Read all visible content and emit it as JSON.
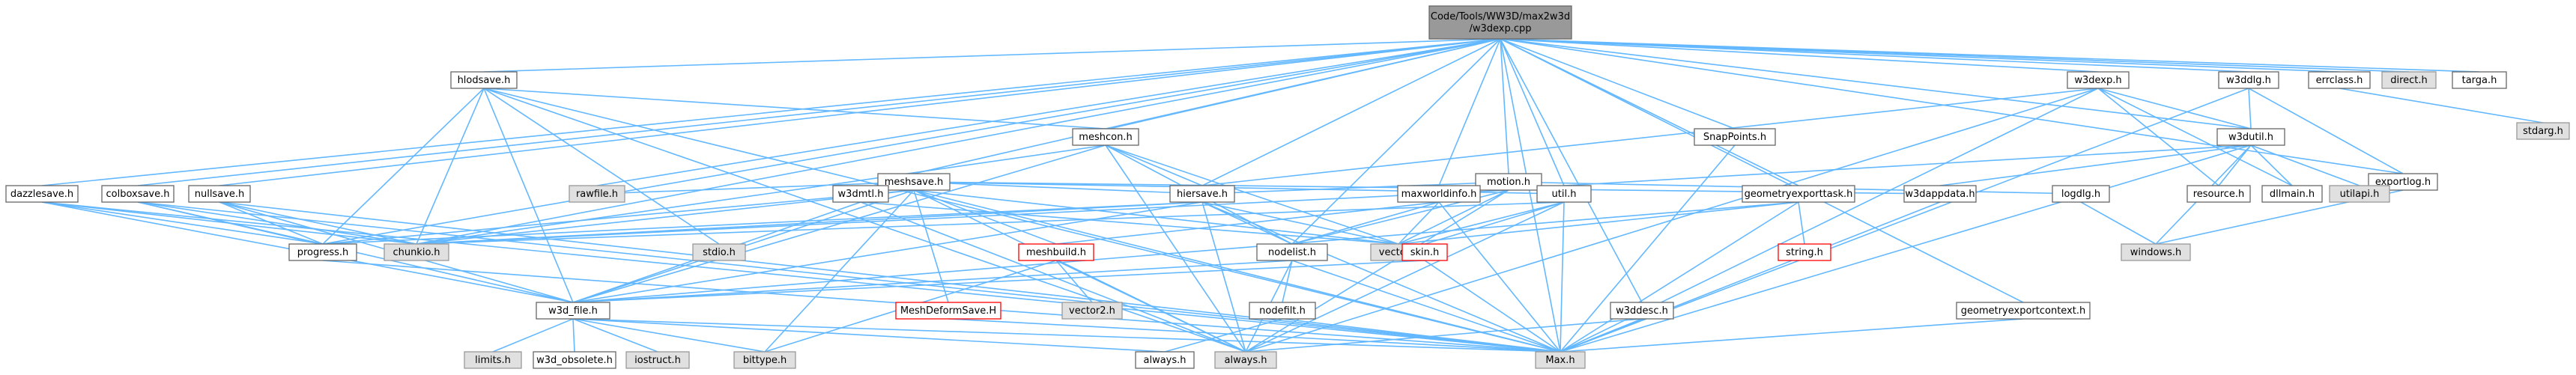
{
  "colors": {
    "edge": "#63b8ff",
    "node_fill": "#ffffff",
    "node_stroke": "#666666",
    "root_fill": "#999999",
    "external_fill": "#e0e0e0",
    "external_stroke": "#999999",
    "highlight_stroke": "#ff0000"
  },
  "nodes": [
    {
      "id": "root",
      "lines": [
        "Code/Tools/WW3D/max2w3d",
        "/w3dexp.cpp"
      ],
      "kind": "root"
    },
    {
      "id": "hlodsave",
      "lines": [
        "hlodsave.h"
      ],
      "kind": "normal"
    },
    {
      "id": "meshcon",
      "lines": [
        "meshcon.h"
      ],
      "kind": "normal"
    },
    {
      "id": "meshsave",
      "lines": [
        "meshsave.h"
      ],
      "kind": "normal"
    },
    {
      "id": "motion",
      "lines": [
        "motion.h"
      ],
      "kind": "normal"
    },
    {
      "id": "snappoints",
      "lines": [
        "SnapPoints.h"
      ],
      "kind": "normal"
    },
    {
      "id": "w3dexp_h",
      "lines": [
        "w3dexp.h"
      ],
      "kind": "normal"
    },
    {
      "id": "w3ddlg",
      "lines": [
        "w3ddlg.h"
      ],
      "kind": "normal"
    },
    {
      "id": "errclass",
      "lines": [
        "errclass.h"
      ],
      "kind": "normal"
    },
    {
      "id": "direct",
      "lines": [
        "direct.h"
      ],
      "kind": "external"
    },
    {
      "id": "targa",
      "lines": [
        "targa.h"
      ],
      "kind": "normal"
    },
    {
      "id": "stdarg",
      "lines": [
        "stdarg.h"
      ],
      "kind": "external"
    },
    {
      "id": "w3dutil",
      "lines": [
        "w3dutil.h"
      ],
      "kind": "normal"
    },
    {
      "id": "exportlog",
      "lines": [
        "exportlog.h"
      ],
      "kind": "normal"
    },
    {
      "id": "dazzlesave",
      "lines": [
        "dazzlesave.h"
      ],
      "kind": "normal"
    },
    {
      "id": "colboxsave",
      "lines": [
        "colboxsave.h"
      ],
      "kind": "normal"
    },
    {
      "id": "nullsave",
      "lines": [
        "nullsave.h"
      ],
      "kind": "normal"
    },
    {
      "id": "rawfile",
      "lines": [
        "rawfile.h"
      ],
      "kind": "external"
    },
    {
      "id": "w3dmtl",
      "lines": [
        "w3dmtl.h"
      ],
      "kind": "normal"
    },
    {
      "id": "hiersave",
      "lines": [
        "hiersave.h"
      ],
      "kind": "normal"
    },
    {
      "id": "maxworldinfo",
      "lines": [
        "maxworldinfo.h"
      ],
      "kind": "normal"
    },
    {
      "id": "util",
      "lines": [
        "util.h"
      ],
      "kind": "normal"
    },
    {
      "id": "geomexporttask",
      "lines": [
        "geometryexporttask.h"
      ],
      "kind": "normal"
    },
    {
      "id": "w3dappdata",
      "lines": [
        "w3dappdata.h"
      ],
      "kind": "normal"
    },
    {
      "id": "logdlg",
      "lines": [
        "logdlg.h"
      ],
      "kind": "normal"
    },
    {
      "id": "resource",
      "lines": [
        "resource.h"
      ],
      "kind": "normal"
    },
    {
      "id": "dllmain",
      "lines": [
        "dllmain.h"
      ],
      "kind": "normal"
    },
    {
      "id": "utilapi",
      "lines": [
        "utilapi.h"
      ],
      "kind": "external"
    },
    {
      "id": "windows",
      "lines": [
        "windows.h"
      ],
      "kind": "external"
    },
    {
      "id": "progress",
      "lines": [
        "progress.h"
      ],
      "kind": "normal"
    },
    {
      "id": "chunkio",
      "lines": [
        "chunkio.h"
      ],
      "kind": "external"
    },
    {
      "id": "stdio",
      "lines": [
        "stdio.h"
      ],
      "kind": "external"
    },
    {
      "id": "meshbuild",
      "lines": [
        "meshbuild.h"
      ],
      "kind": "highlight"
    },
    {
      "id": "nodelist",
      "lines": [
        "nodelist.h"
      ],
      "kind": "normal"
    },
    {
      "id": "vector",
      "lines": [
        "vector.h"
      ],
      "kind": "external"
    },
    {
      "id": "skin",
      "lines": [
        "skin.h"
      ],
      "kind": "highlight"
    },
    {
      "id": "string",
      "lines": [
        "string.h"
      ],
      "kind": "highlight"
    },
    {
      "id": "w3dfile",
      "lines": [
        "w3d_file.h"
      ],
      "kind": "normal"
    },
    {
      "id": "meshdeform",
      "lines": [
        "MeshDeformSave.H"
      ],
      "kind": "highlight"
    },
    {
      "id": "vector2",
      "lines": [
        "vector2.h"
      ],
      "kind": "external"
    },
    {
      "id": "nodefilt",
      "lines": [
        "nodefilt.h"
      ],
      "kind": "normal"
    },
    {
      "id": "w3ddesc",
      "lines": [
        "w3ddesc.h"
      ],
      "kind": "normal"
    },
    {
      "id": "geomexportctx",
      "lines": [
        "geometryexportcontext.h"
      ],
      "kind": "normal"
    },
    {
      "id": "limits",
      "lines": [
        "limits.h"
      ],
      "kind": "external"
    },
    {
      "id": "w3dobsolete",
      "lines": [
        "w3d_obsolete.h"
      ],
      "kind": "normal"
    },
    {
      "id": "iostruct",
      "lines": [
        "iostruct.h"
      ],
      "kind": "external"
    },
    {
      "id": "bittype",
      "lines": [
        "bittype.h"
      ],
      "kind": "external"
    },
    {
      "id": "always_n",
      "lines": [
        "always.h"
      ],
      "kind": "normal"
    },
    {
      "id": "always_e",
      "lines": [
        "always.h"
      ],
      "kind": "external"
    },
    {
      "id": "max",
      "lines": [
        "Max.h"
      ],
      "kind": "external"
    }
  ],
  "edges": [
    [
      "root",
      "hlodsave"
    ],
    [
      "root",
      "meshcon"
    ],
    [
      "root",
      "meshsave"
    ],
    [
      "root",
      "motion"
    ],
    [
      "root",
      "snappoints"
    ],
    [
      "root",
      "w3dexp_h"
    ],
    [
      "root",
      "w3ddlg"
    ],
    [
      "root",
      "errclass"
    ],
    [
      "root",
      "direct"
    ],
    [
      "root",
      "targa"
    ],
    [
      "root",
      "w3dutil"
    ],
    [
      "root",
      "exportlog"
    ],
    [
      "root",
      "dazzlesave"
    ],
    [
      "root",
      "colboxsave"
    ],
    [
      "root",
      "nullsave"
    ],
    [
      "root",
      "rawfile"
    ],
    [
      "root",
      "hiersave"
    ],
    [
      "root",
      "maxworldinfo"
    ],
    [
      "root",
      "util"
    ],
    [
      "root",
      "geomexporttask"
    ],
    [
      "root",
      "progress"
    ],
    [
      "root",
      "chunkio"
    ],
    [
      "root",
      "nodelist"
    ],
    [
      "root",
      "w3ddesc"
    ],
    [
      "root",
      "geomexportctx"
    ],
    [
      "root",
      "max"
    ],
    [
      "hlodsave",
      "meshcon"
    ],
    [
      "hlodsave",
      "progress"
    ],
    [
      "hlodsave",
      "chunkio"
    ],
    [
      "hlodsave",
      "stdio"
    ],
    [
      "hlodsave",
      "w3dfile"
    ],
    [
      "hlodsave",
      "max"
    ],
    [
      "hlodsave",
      "always_e"
    ],
    [
      "meshcon",
      "w3dfile"
    ],
    [
      "meshcon",
      "nodelist"
    ],
    [
      "meshcon",
      "vector"
    ],
    [
      "meshcon",
      "always_e"
    ],
    [
      "meshcon",
      "hiersave"
    ],
    [
      "meshcon",
      "chunkio"
    ],
    [
      "meshsave",
      "chunkio"
    ],
    [
      "meshsave",
      "rawfile"
    ],
    [
      "meshsave",
      "w3dmtl"
    ],
    [
      "meshsave",
      "meshbuild"
    ],
    [
      "meshsave",
      "meshdeform"
    ],
    [
      "meshsave",
      "progress"
    ],
    [
      "meshsave",
      "w3dfile"
    ],
    [
      "meshsave",
      "bittype"
    ],
    [
      "meshsave",
      "always_e"
    ],
    [
      "meshsave",
      "util"
    ],
    [
      "meshsave",
      "w3dappdata"
    ],
    [
      "meshsave",
      "vector"
    ],
    [
      "meshsave",
      "hiersave"
    ],
    [
      "meshsave",
      "max"
    ],
    [
      "motion",
      "hiersave"
    ],
    [
      "motion",
      "nodelist"
    ],
    [
      "motion",
      "chunkio"
    ],
    [
      "motion",
      "logdlg"
    ],
    [
      "motion",
      "vector"
    ],
    [
      "motion",
      "always_e"
    ],
    [
      "snappoints",
      "max"
    ],
    [
      "w3dexp_h",
      "hiersave"
    ],
    [
      "w3dexp_h",
      "w3dutil"
    ],
    [
      "w3dexp_h",
      "resource"
    ],
    [
      "w3dexp_h",
      "dllmain"
    ],
    [
      "w3dexp_h",
      "max"
    ],
    [
      "w3dexp_h",
      "always_e"
    ],
    [
      "w3ddlg",
      "w3dutil"
    ],
    [
      "w3ddlg",
      "exportlog"
    ],
    [
      "w3ddlg",
      "max"
    ],
    [
      "errclass",
      "stdarg"
    ],
    [
      "w3dutil",
      "resource"
    ],
    [
      "w3dutil",
      "dllmain"
    ],
    [
      "w3dutil",
      "utilapi"
    ],
    [
      "w3dutil",
      "w3dappdata"
    ],
    [
      "w3dutil",
      "util"
    ],
    [
      "w3dutil",
      "windows"
    ],
    [
      "w3dutil",
      "max"
    ],
    [
      "exportlog",
      "windows"
    ],
    [
      "dazzlesave",
      "progress"
    ],
    [
      "dazzlesave",
      "w3dfile"
    ],
    [
      "dazzlesave",
      "chunkio"
    ],
    [
      "dazzlesave",
      "max"
    ],
    [
      "colboxsave",
      "progress"
    ],
    [
      "colboxsave",
      "w3dfile"
    ],
    [
      "colboxsave",
      "chunkio"
    ],
    [
      "colboxsave",
      "max"
    ],
    [
      "nullsave",
      "progress"
    ],
    [
      "nullsave",
      "w3dfile"
    ],
    [
      "nullsave",
      "chunkio"
    ],
    [
      "nullsave",
      "max"
    ],
    [
      "w3dmtl",
      "w3dfile"
    ],
    [
      "w3dmtl",
      "vector"
    ],
    [
      "w3dmtl",
      "always_e"
    ],
    [
      "hiersave",
      "progress"
    ],
    [
      "hiersave",
      "chunkio"
    ],
    [
      "hiersave",
      "nodelist"
    ],
    [
      "hiersave",
      "vector"
    ],
    [
      "hiersave",
      "w3dfile"
    ],
    [
      "hiersave",
      "always_e"
    ],
    [
      "hiersave",
      "max"
    ],
    [
      "maxworldinfo",
      "meshbuild"
    ],
    [
      "maxworldinfo",
      "vector"
    ],
    [
      "maxworldinfo",
      "nodelist"
    ],
    [
      "maxworldinfo",
      "max"
    ],
    [
      "util",
      "chunkio"
    ],
    [
      "util",
      "vector"
    ],
    [
      "util",
      "skin"
    ],
    [
      "util",
      "always_e"
    ],
    [
      "util",
      "max"
    ],
    [
      "geomexporttask",
      "string"
    ],
    [
      "geomexporttask",
      "vector"
    ],
    [
      "geomexporttask",
      "w3dfile"
    ],
    [
      "geomexporttask",
      "max"
    ],
    [
      "w3dappdata",
      "max"
    ],
    [
      "logdlg",
      "windows"
    ],
    [
      "progress",
      "max"
    ],
    [
      "meshbuild",
      "vector2"
    ],
    [
      "meshbuild",
      "bittype"
    ],
    [
      "meshbuild",
      "always_e"
    ],
    [
      "nodelist",
      "nodefilt"
    ],
    [
      "nodelist",
      "w3dfile"
    ],
    [
      "nodelist",
      "always_e"
    ],
    [
      "nodelist",
      "max"
    ],
    [
      "skin",
      "w3dfile"
    ],
    [
      "skin",
      "max"
    ],
    [
      "w3dfile",
      "limits"
    ],
    [
      "w3dfile",
      "w3dobsolete"
    ],
    [
      "w3dfile",
      "iostruct"
    ],
    [
      "w3dfile",
      "bittype"
    ],
    [
      "w3dfile",
      "always_n"
    ],
    [
      "w3dfile",
      "max"
    ],
    [
      "meshdeform",
      "max"
    ],
    [
      "nodefilt",
      "always_n"
    ],
    [
      "nodefilt",
      "max"
    ],
    [
      "w3ddesc",
      "max"
    ],
    [
      "w3ddesc",
      "always_e"
    ],
    [
      "geomexportctx",
      "max"
    ]
  ]
}
